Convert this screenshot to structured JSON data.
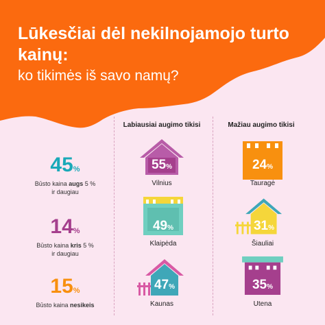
{
  "header": {
    "title": "Lūkesčiai dėl nekilnojamojo turto kainų:",
    "subtitle": "ko tikimės iš savo namų?",
    "color": "#fb6a0f"
  },
  "columns": {
    "most_growth": "Labiausiai augimo tikisi",
    "least_growth": "Mažiau augimo tikisi"
  },
  "stats": [
    {
      "value": "45",
      "unit": "%",
      "line1_pre": "Būsto kaina ",
      "line1_bold": "augs",
      "line1_post": " 5 %",
      "line2": "ir daugiau",
      "color": "#1aa9b8"
    },
    {
      "value": "14",
      "unit": "%",
      "line1_pre": "Būsto kaina ",
      "line1_bold": "kris",
      "line1_post": " 5 %",
      "line2": "ir daugiau",
      "color": "#a53f8d"
    },
    {
      "value": "15",
      "unit": "%",
      "line1_pre": "Būsto kaina ",
      "line1_bold": "nesikeis",
      "line1_post": "",
      "line2": "",
      "color": "#f8900f"
    }
  ],
  "most": [
    {
      "value": "55",
      "unit": "%",
      "city": "Vilnius",
      "icon": "house-icon",
      "color": "#b85ca8"
    },
    {
      "value": "49",
      "unit": "%",
      "city": "Klaipėda",
      "icon": "building-icon",
      "color": "#6fcfc0"
    },
    {
      "value": "47",
      "unit": "%",
      "city": "Kaunas",
      "icon": "house-with-fence-icon",
      "color": "#3fa7b8"
    }
  ],
  "least": [
    {
      "value": "24",
      "unit": "%",
      "city": "Tauragė",
      "icon": "building-icon",
      "color": "#f8900f"
    },
    {
      "value": "31",
      "unit": "%",
      "city": "Šiauliai",
      "icon": "house-with-fence-icon",
      "color": "#f5d63a"
    },
    {
      "value": "35",
      "unit": "%",
      "city": "Utena",
      "icon": "building-icon",
      "color": "#a53f8d"
    }
  ]
}
